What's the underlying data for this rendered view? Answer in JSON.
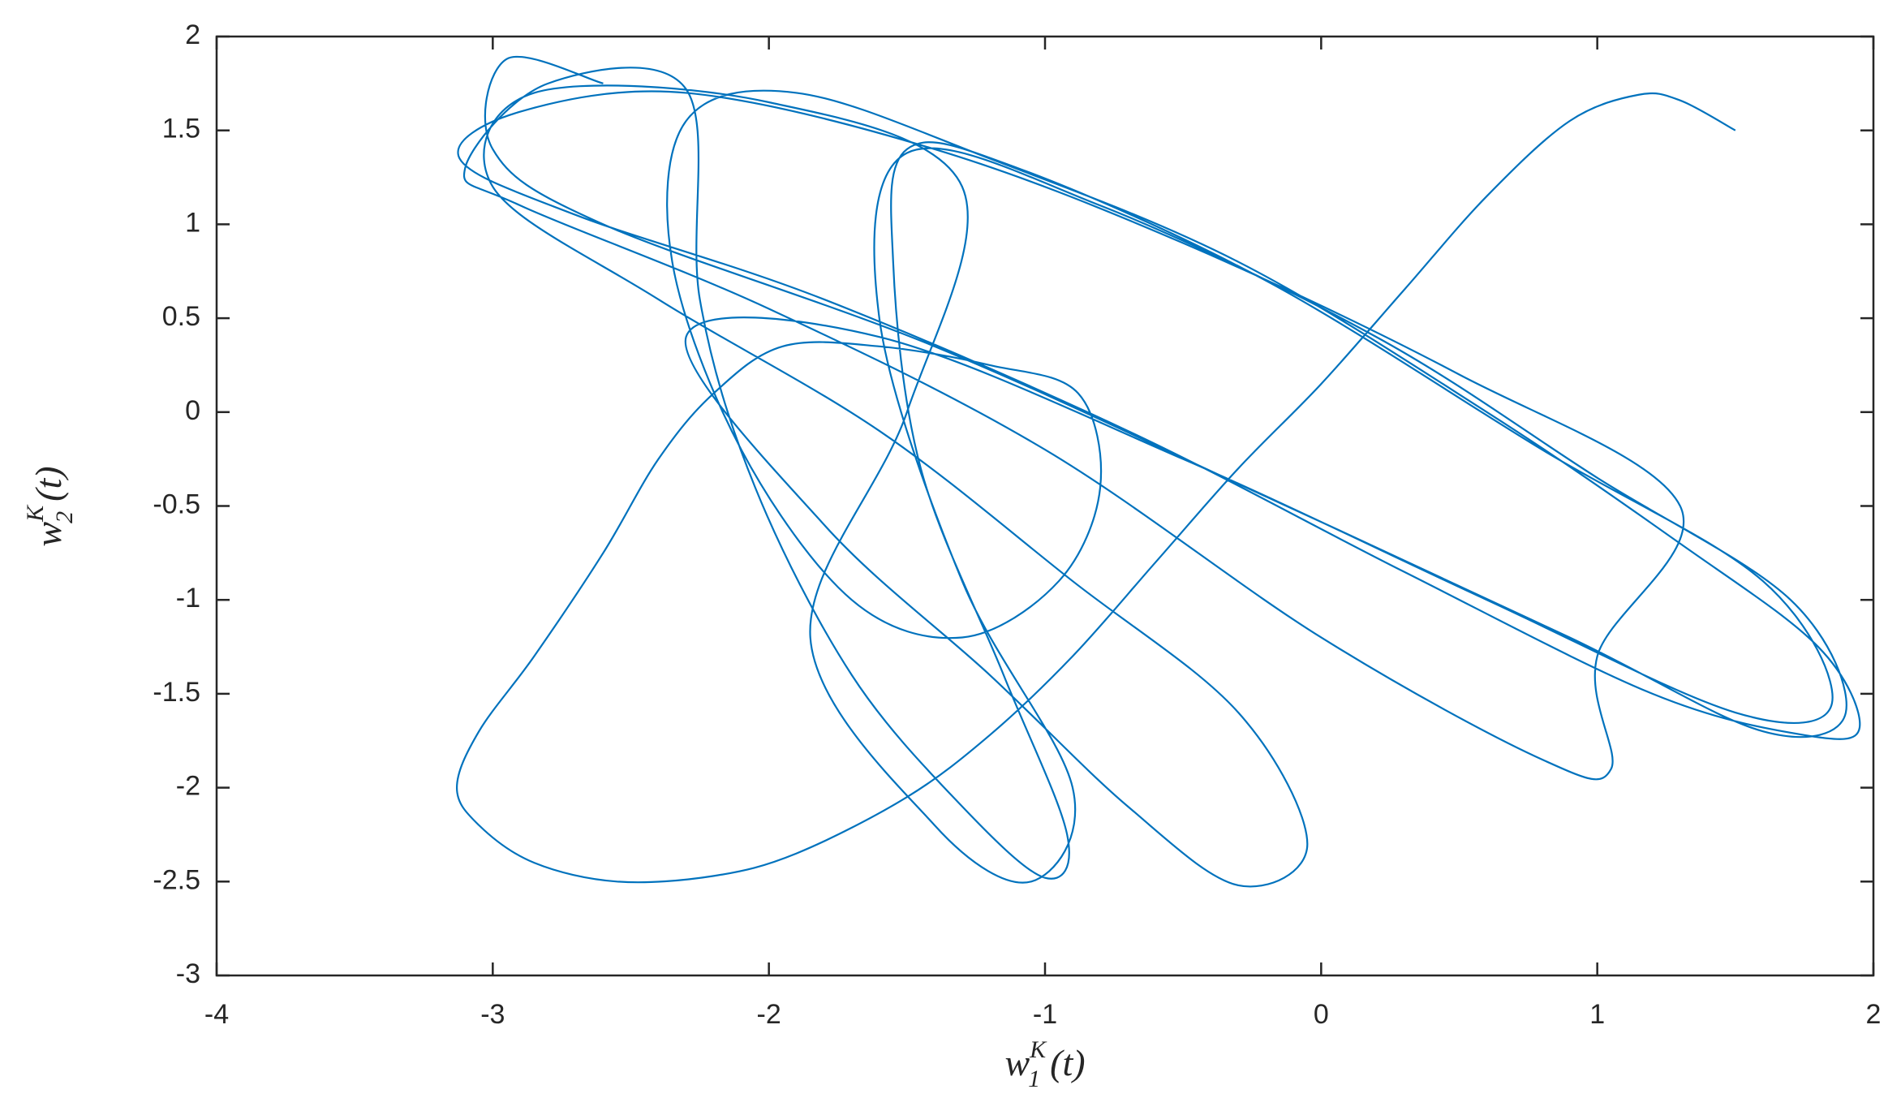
{
  "chart_data": {
    "type": "line",
    "xlabel": {
      "base": "w",
      "sub": "1",
      "sup": "K",
      "rest": "(t)"
    },
    "ylabel": {
      "base": "w",
      "sub": "2",
      "sup": "K",
      "rest": "(t)"
    },
    "xlim": [
      -4,
      2
    ],
    "xticks": [
      -4,
      -3,
      -2,
      -1,
      0,
      1,
      2
    ],
    "ylim": [
      -3,
      2
    ],
    "yticks": [
      -3,
      -2.5,
      -2,
      -1.5,
      -1,
      -0.5,
      0,
      0.5,
      1,
      1.5,
      2
    ],
    "grid": false,
    "x": [
      1.5,
      1.3,
      1.15,
      0.9,
      0.6,
      0.3,
      0,
      -0.3,
      -0.6,
      -0.9,
      -1.2,
      -1.5,
      -1.9,
      -2.2,
      -2.55,
      -2.85,
      -3.05,
      -3.13,
      -3.05,
      -2.85,
      -2.6,
      -2.4,
      -2.2,
      -1.95,
      -1.6,
      -1.2,
      -0.88,
      -0.8,
      -0.95,
      -1.3,
      -1.7,
      -2.1,
      -2.35,
      -2.3,
      -1.9,
      -1.2,
      -0.3,
      0.6,
      1.3,
      1.8,
      1.95,
      1.75,
      1.2,
      0.3,
      -0.7,
      -1.8,
      -2.7,
      -3.12,
      -2.9,
      -2.3,
      -1.4,
      -0.5,
      0.5,
      1.3,
      1.0,
      1.05,
      0.8,
      0.0,
      -1.0,
      -2.0,
      -2.9,
      -3.1,
      -2.8,
      -2.3,
      -2.25,
      -2.05,
      -1.7,
      -1.3,
      -1.0,
      -0.92,
      -1.15,
      -1.45,
      -1.55,
      -1.5,
      -1.1,
      -0.2,
      0.8,
      1.6,
      1.85,
      1.5,
      0.6,
      -0.5,
      -1.6,
      -2.3,
      -1.8,
      -1.2,
      -0.7,
      -0.3,
      -0.05,
      -0.3,
      -0.9,
      -1.6,
      -2.4,
      -3.0,
      -2.85,
      -2.0,
      -1.3,
      -1.5,
      -1.85,
      -1.4,
      -1.05,
      -0.9,
      -1.3,
      -1.6,
      -1.5,
      -0.8,
      0.2,
      1.0,
      1.7,
      1.9,
      1.6,
      0.9,
      -0.2,
      -1.4,
      -2.6,
      -3.0,
      -2.95,
      -2.6
    ],
    "series": [
      {
        "color": "#0072bd",
        "values": [
          1.5,
          1.66,
          1.69,
          1.55,
          1.15,
          0.65,
          0.15,
          -0.3,
          -0.8,
          -1.3,
          -1.72,
          -2.05,
          -2.35,
          -2.47,
          -2.5,
          -2.4,
          -2.2,
          -2.0,
          -1.7,
          -1.3,
          -0.75,
          -0.25,
          0.1,
          0.35,
          0.35,
          0.25,
          0.1,
          -0.4,
          -0.9,
          -1.2,
          -1.0,
          -0.2,
          0.8,
          1.55,
          1.7,
          1.35,
          0.8,
          0.0,
          -0.7,
          -1.25,
          -1.68,
          -1.72,
          -1.5,
          -0.85,
          -0.1,
          0.6,
          1.05,
          1.35,
          1.6,
          1.7,
          1.4,
          0.9,
          0.2,
          -0.5,
          -1.3,
          -1.9,
          -1.85,
          -1.2,
          -0.2,
          0.55,
          1.1,
          1.3,
          1.75,
          1.72,
          0.6,
          -0.4,
          -1.4,
          -2.1,
          -2.48,
          -2.25,
          -1.4,
          -0.3,
          0.8,
          1.4,
          1.3,
          0.7,
          -0.2,
          -0.9,
          -1.55,
          -1.6,
          -1.0,
          -0.25,
          0.4,
          0.4,
          -0.6,
          -1.4,
          -2.1,
          -2.52,
          -2.3,
          -1.6,
          -0.9,
          -0.1,
          0.6,
          1.2,
          1.7,
          1.65,
          1.2,
          0.0,
          -1.2,
          -2.2,
          -2.5,
          -2.0,
          -0.9,
          0.5,
          1.38,
          1.1,
          0.4,
          -0.35,
          -1.0,
          -1.6,
          -1.7,
          -1.2,
          -0.45,
          0.35,
          1.0,
          1.4,
          1.88,
          1.75
        ]
      }
    ]
  }
}
